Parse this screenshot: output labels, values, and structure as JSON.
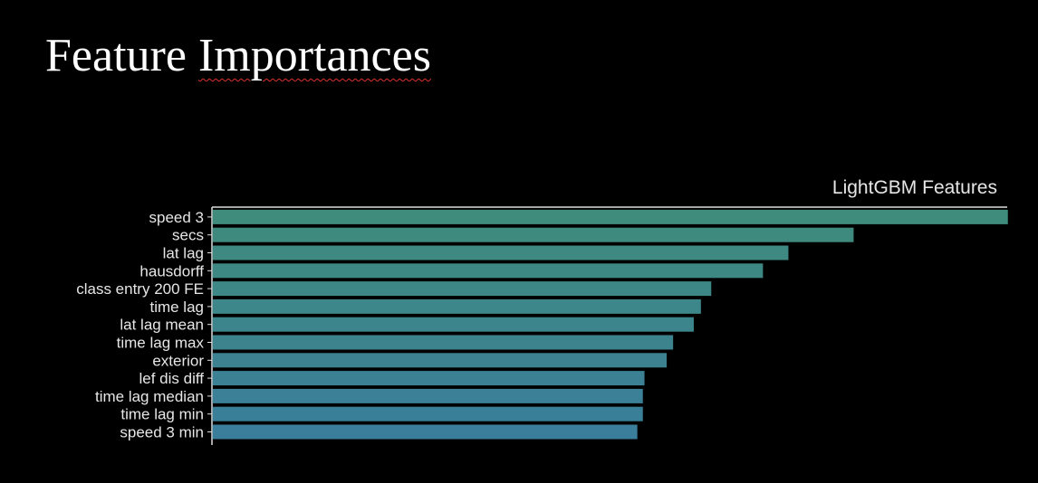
{
  "slide": {
    "title_prefix": "Feature ",
    "title_underlined": "Importances"
  },
  "chart_data": {
    "type": "bar",
    "orientation": "horizontal",
    "title": "LightGBM Features",
    "xlabel": "",
    "ylabel": "",
    "categories": [
      "speed 3",
      "secs",
      "lat lag",
      "hausdorff",
      "class entry 200 FE",
      "time lag",
      "lat lag mean",
      "time lag max",
      "exterior",
      "lef dis diff",
      "time lag median",
      "time lag min",
      "speed 3 min"
    ],
    "values": [
      100,
      80.6,
      72.4,
      69.2,
      62.7,
      61.4,
      60.5,
      57.9,
      57.1,
      54.3,
      54.1,
      54.1,
      53.4
    ],
    "xlim": [
      0,
      100
    ],
    "grid": false,
    "legend": "none",
    "colors": {
      "bar_top": "#3f8b7c",
      "bar_bottom": "#3a7e9b",
      "background": "#000000",
      "text": "#e6e6e6"
    }
  }
}
